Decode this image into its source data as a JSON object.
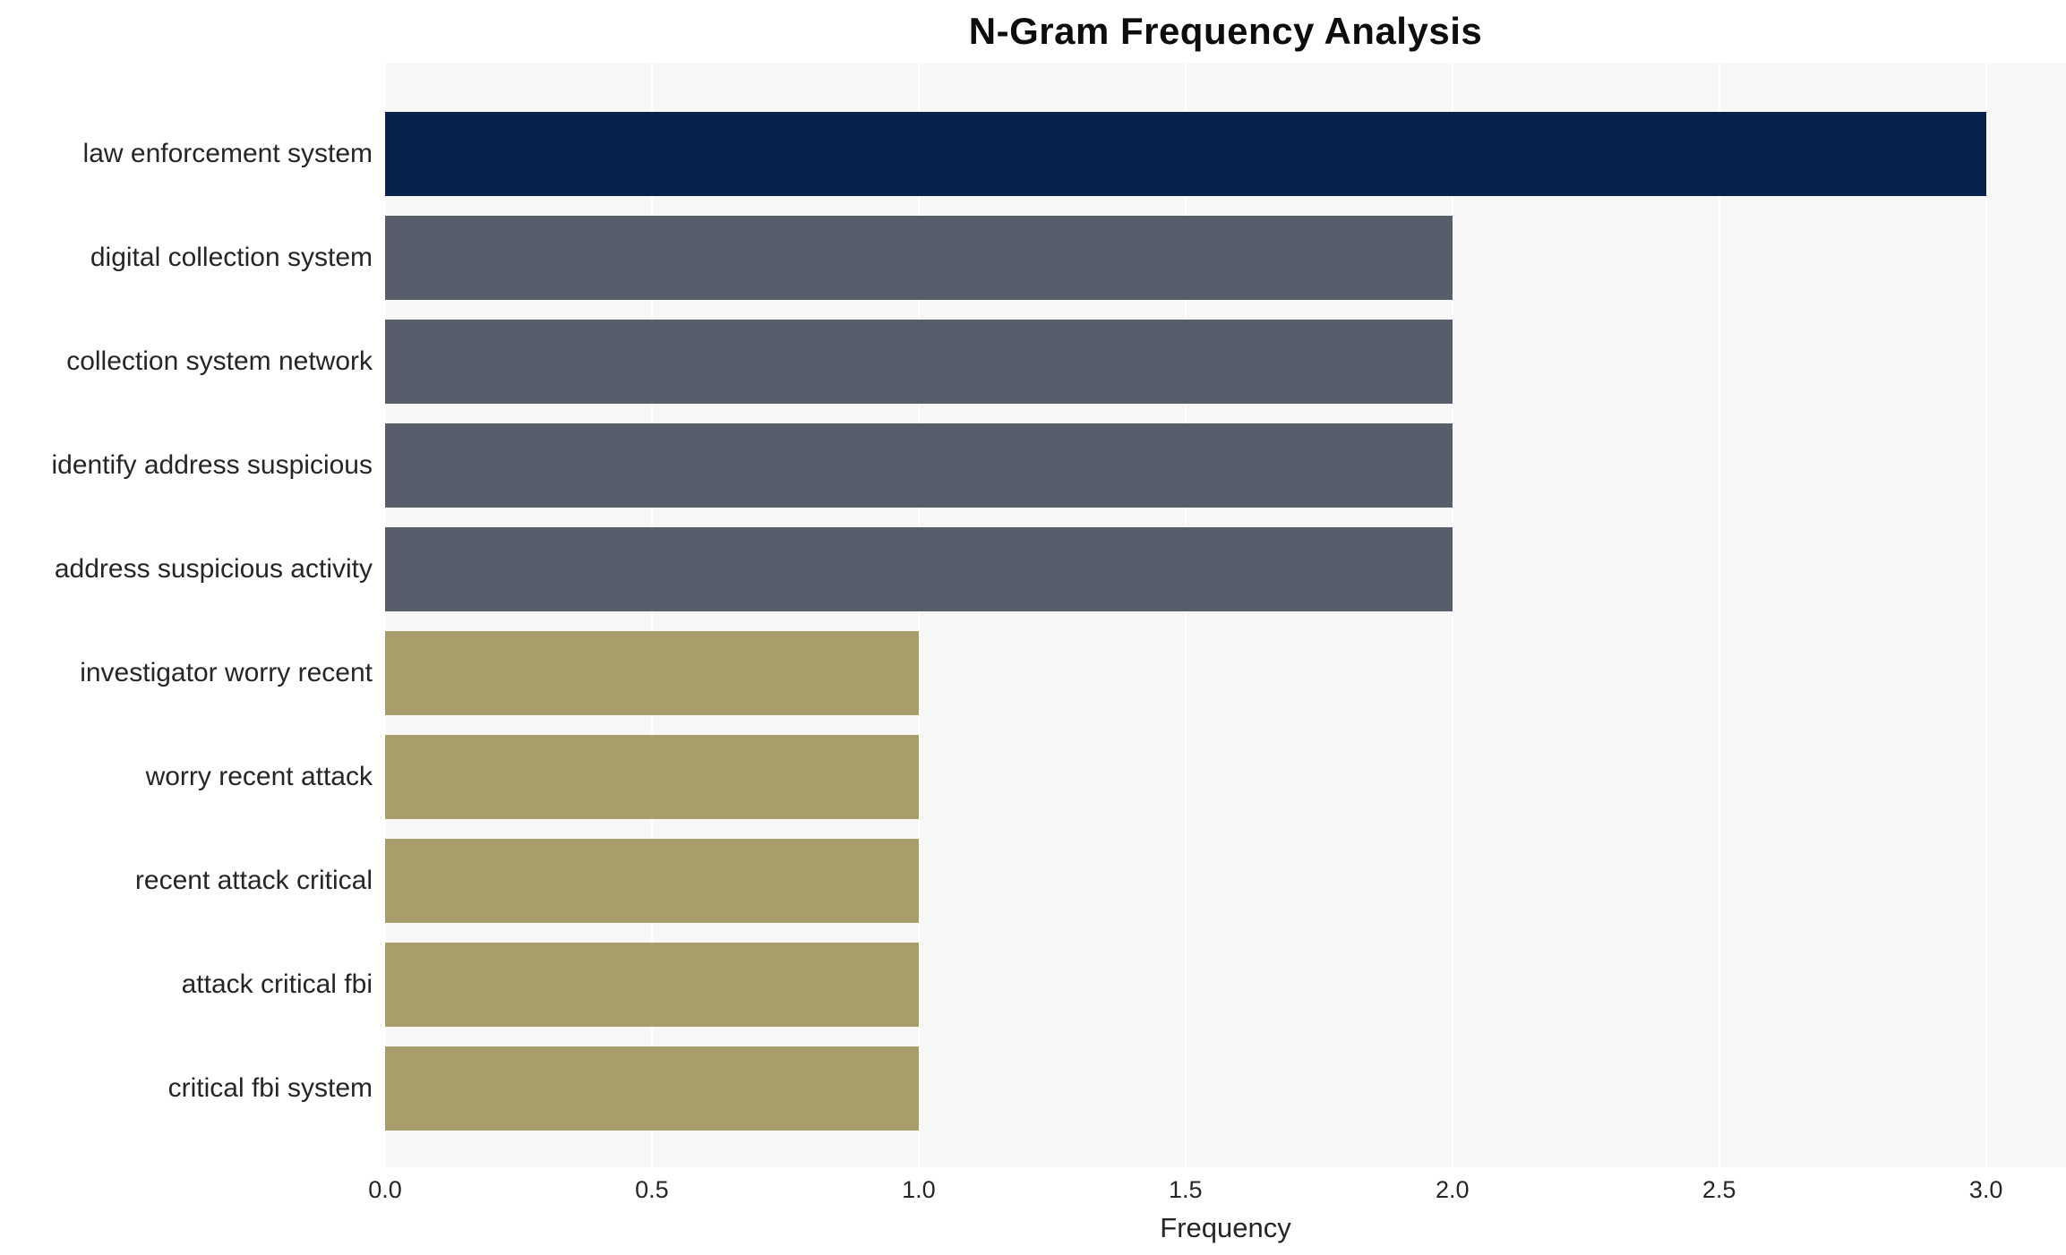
{
  "chart_data": {
    "type": "bar",
    "orientation": "horizontal",
    "title": "N-Gram Frequency Analysis",
    "xlabel": "Frequency",
    "ylabel": "",
    "xlim": [
      0,
      3.15
    ],
    "xtick_labels": [
      "0.0",
      "0.5",
      "1.0",
      "1.5",
      "2.0",
      "2.5",
      "3.0"
    ],
    "categories": [
      "law enforcement system",
      "digital collection system",
      "collection system network",
      "identify address suspicious",
      "address suspicious activity",
      "investigator worry recent",
      "worry recent attack",
      "recent attack critical",
      "attack critical fbi",
      "critical fbi system"
    ],
    "values": [
      3,
      2,
      2,
      2,
      2,
      1,
      1,
      1,
      1,
      1
    ],
    "bar_colors": [
      "#07234B",
      "#575D6B",
      "#575D6B",
      "#575D6B",
      "#575D6B",
      "#A79E6C",
      "#A79E6C",
      "#A79E6C",
      "#A79E6C",
      "#A79E6C"
    ],
    "colors": {
      "plot_background": "#F7F7F8",
      "grid": "#FFFFFF",
      "text": "#262626",
      "title": "#0D0D0D"
    },
    "grid": true,
    "legend_position": "none"
  }
}
